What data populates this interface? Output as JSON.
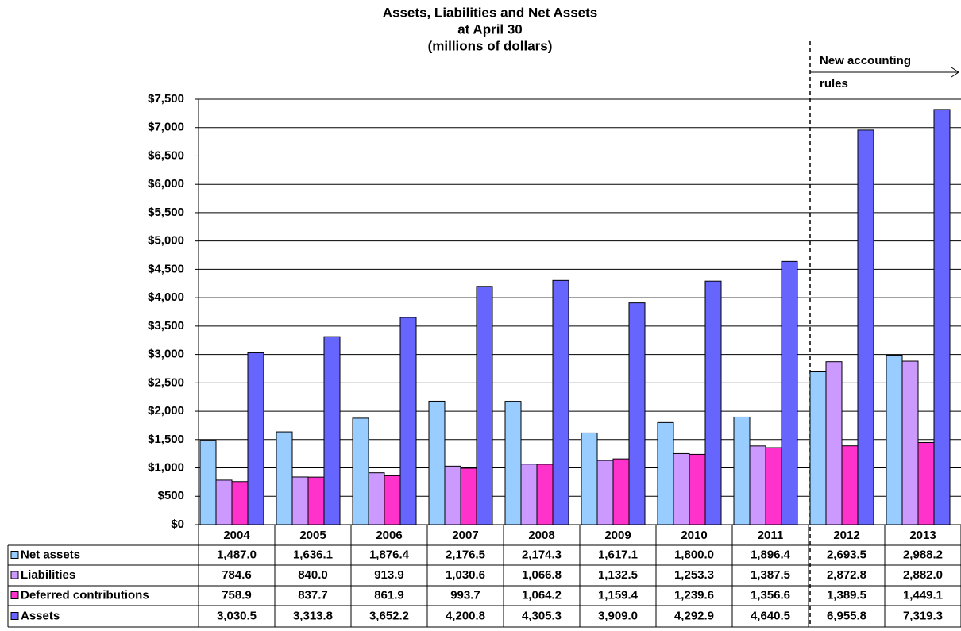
{
  "chart_data": {
    "type": "bar",
    "title": [
      "Assets, Liabilities and Net Assets",
      "at April 30",
      "(millions of dollars)"
    ],
    "annotation": [
      "New accounting",
      "rules"
    ],
    "categories": [
      "2004",
      "2005",
      "2006",
      "2007",
      "2008",
      "2009",
      "2010",
      "2011",
      "2012",
      "2013"
    ],
    "series": [
      {
        "name": "Net assets",
        "color": "#99ccff",
        "values": [
          1487.0,
          1636.1,
          1876.4,
          2176.5,
          2174.3,
          1617.1,
          1800.0,
          1896.4,
          2693.5,
          2988.2
        ],
        "value_labels": [
          "1,487.0",
          "1,636.1",
          "1,876.4",
          "2,176.5",
          "2,174.3",
          "1,617.1",
          "1,800.0",
          "1,896.4",
          "2,693.5",
          "2,988.2"
        ]
      },
      {
        "name": "Liabilities",
        "color": "#cc99ff",
        "values": [
          784.6,
          840.0,
          913.9,
          1030.6,
          1066.8,
          1132.5,
          1253.3,
          1387.5,
          2872.8,
          2882.0
        ],
        "value_labels": [
          "784.6",
          "840.0",
          "913.9",
          "1,030.6",
          "1,066.8",
          "1,132.5",
          "1,253.3",
          "1,387.5",
          "2,872.8",
          "2,882.0"
        ]
      },
      {
        "name": "Deferred contributions",
        "color": "#ff33cc",
        "values": [
          758.9,
          837.7,
          861.9,
          993.7,
          1064.2,
          1159.4,
          1239.6,
          1356.6,
          1389.5,
          1449.1
        ],
        "value_labels": [
          "758.9",
          "837.7",
          "861.9",
          "993.7",
          "1,064.2",
          "1,159.4",
          "1,239.6",
          "1,356.6",
          "1,389.5",
          "1,449.1"
        ]
      },
      {
        "name": "Assets",
        "color": "#6666ff",
        "values": [
          3030.5,
          3313.8,
          3652.2,
          4200.8,
          4305.3,
          3909.0,
          4292.9,
          4640.5,
          6955.8,
          7319.3
        ],
        "value_labels": [
          "3,030.5",
          "3,313.8",
          "3,652.2",
          "4,200.8",
          "4,305.3",
          "3,909.0",
          "4,292.9",
          "4,640.5",
          "6,955.8",
          "7,319.3"
        ]
      }
    ],
    "ylim": [
      0,
      7500
    ],
    "yticks": [
      {
        "value": 0,
        "label": "$0"
      },
      {
        "value": 500,
        "label": "$500"
      },
      {
        "value": 1000,
        "label": "$1,000"
      },
      {
        "value": 1500,
        "label": "$1,500"
      },
      {
        "value": 2000,
        "label": "$2,000"
      },
      {
        "value": 2500,
        "label": "$2,500"
      },
      {
        "value": 3000,
        "label": "$3,000"
      },
      {
        "value": 3500,
        "label": "$3,500"
      },
      {
        "value": 4000,
        "label": "$4,000"
      },
      {
        "value": 4500,
        "label": "$4,500"
      },
      {
        "value": 5000,
        "label": "$5,000"
      },
      {
        "value": 5500,
        "label": "$5,500"
      },
      {
        "value": 6000,
        "label": "$6,000"
      },
      {
        "value": 6500,
        "label": "$6,500"
      },
      {
        "value": 7000,
        "label": "$7,000"
      },
      {
        "value": 7500,
        "label": "$7,500"
      }
    ],
    "grid": true
  }
}
